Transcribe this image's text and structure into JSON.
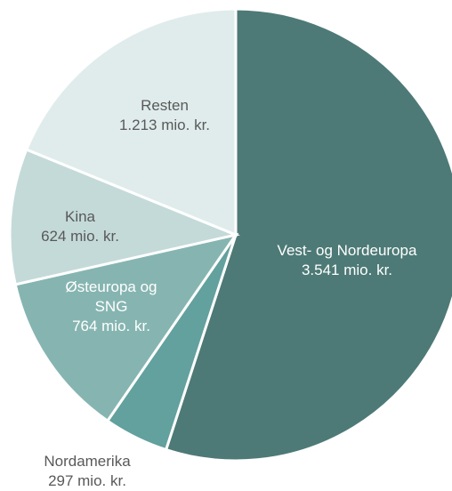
{
  "chart_data": {
    "type": "pie",
    "categories": [
      "Vest- og Nordeuropa",
      "Nordamerika",
      "Østeuropa og SNG",
      "Kina",
      "Resten"
    ],
    "values": [
      3541,
      297,
      764,
      624,
      1213
    ],
    "value_labels": [
      "3.541 mio. kr.",
      "297 mio. kr.",
      "764 mio. kr.",
      "624 mio. kr.",
      "1.213 mio. kr."
    ],
    "colors": [
      "#4d7a76",
      "#62a19d",
      "#86b5b1",
      "#c4dad9",
      "#e0ecec"
    ]
  }
}
